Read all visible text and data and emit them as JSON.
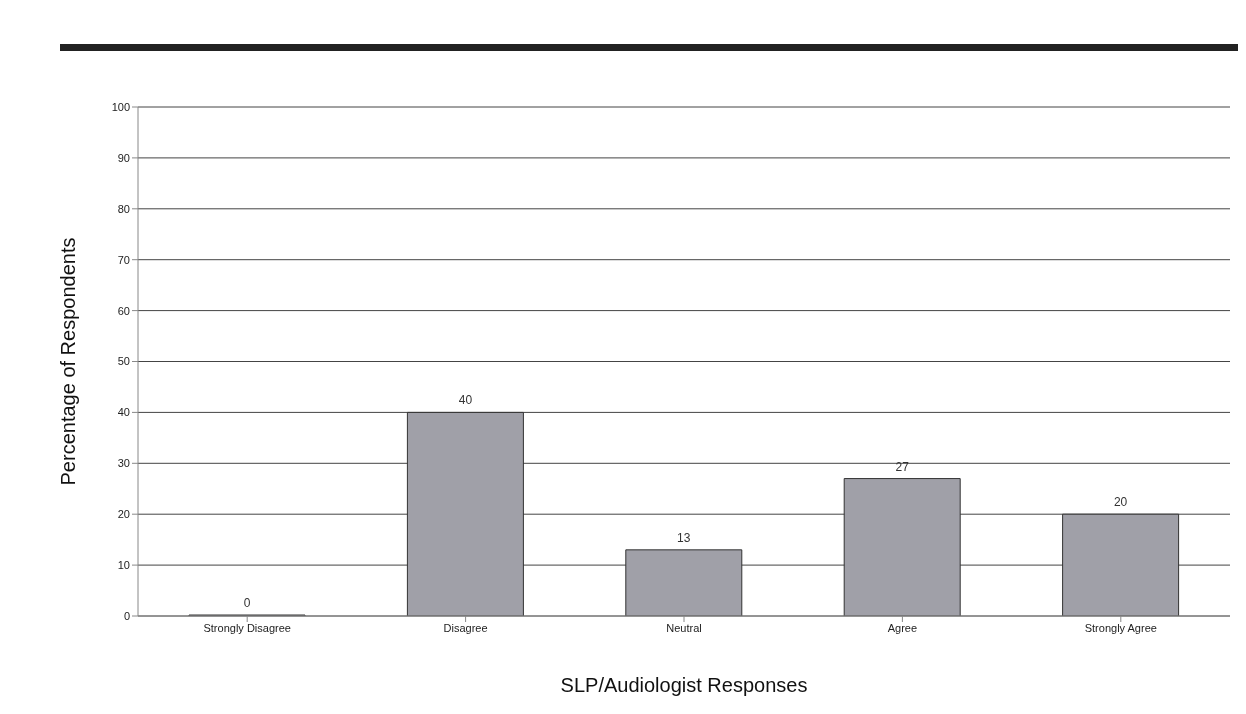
{
  "chart_data": {
    "type": "bar",
    "xlabel": "SLP/Audiologist Responses",
    "ylabel": "Percentage of Respondents",
    "categories": [
      "Strongly Disagree",
      "Disagree",
      "Neutral",
      "Agree",
      "Strongly Agree"
    ],
    "values": [
      0,
      40,
      13,
      27,
      20
    ],
    "color": "#a0a0a8",
    "ylim": [
      0,
      100
    ],
    "yticks": [
      0,
      10,
      20,
      30,
      40,
      50,
      60,
      70,
      80,
      90,
      100
    ],
    "grid": "y",
    "data_labels": true
  }
}
